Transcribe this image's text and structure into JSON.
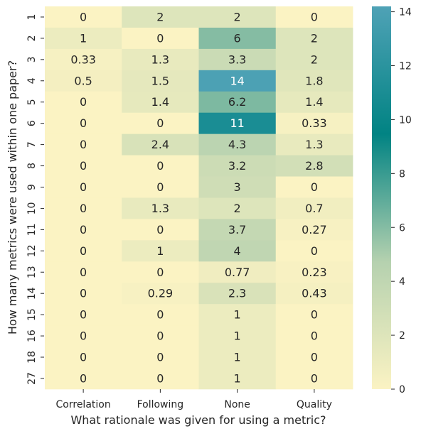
{
  "chart_data": {
    "type": "heatmap",
    "title": "",
    "xlabel": "What rationale was given for using a metric?",
    "ylabel": "How many metrics were used within one paper?",
    "x_categories": [
      "Correlation",
      "Following",
      "None",
      "Quality"
    ],
    "y_categories": [
      "1",
      "2",
      "3",
      "4",
      "5",
      "6",
      "7",
      "8",
      "9",
      "10",
      "11",
      "12",
      "13",
      "14",
      "15",
      "16",
      "18",
      "27"
    ],
    "values": [
      [
        0,
        2,
        2,
        0
      ],
      [
        1,
        0,
        6,
        2
      ],
      [
        0.33,
        1.3,
        3.3,
        2
      ],
      [
        0.5,
        1.5,
        14,
        1.8
      ],
      [
        0,
        1.4,
        6.2,
        1.4
      ],
      [
        0,
        0,
        11,
        0.33
      ],
      [
        0,
        2.4,
        4.3,
        1.3
      ],
      [
        0,
        0,
        3.2,
        2.8
      ],
      [
        0,
        0,
        3,
        0
      ],
      [
        0,
        1.3,
        2,
        0.7
      ],
      [
        0,
        0,
        3.7,
        0.27
      ],
      [
        0,
        1,
        4,
        0
      ],
      [
        0,
        0,
        0.77,
        0.23
      ],
      [
        0,
        0.29,
        2.3,
        0.43
      ],
      [
        0,
        0,
        1,
        0
      ],
      [
        0,
        0,
        1,
        0
      ],
      [
        0,
        0,
        1,
        0
      ],
      [
        0,
        0,
        1,
        0
      ]
    ],
    "colorbar": {
      "min": 0,
      "max": 14.2,
      "ticks": [
        0,
        2,
        4,
        6,
        8,
        10,
        12,
        14
      ],
      "colormap": [
        "#fbf3c3",
        "#b5d1af",
        "#018383",
        "#4fa2b6"
      ]
    },
    "grid": false,
    "legend": "colorbar-right"
  }
}
